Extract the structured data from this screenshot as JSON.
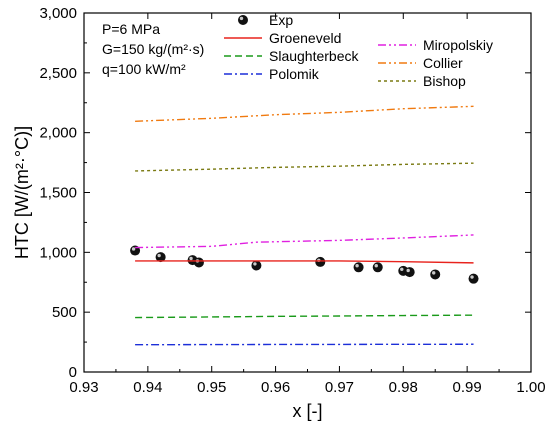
{
  "chart_data": {
    "type": "line",
    "xlabel": "x [-]",
    "ylabel": "HTC [W/(m²·°C)]",
    "xlim": [
      0.93,
      1.0
    ],
    "ylim": [
      0,
      3000
    ],
    "x_ticks": [
      "0.93",
      "0.94",
      "0.95",
      "0.96",
      "0.97",
      "0.98",
      "0.99",
      "1.00"
    ],
    "y_ticks": [
      "0",
      "500",
      "1,000",
      "1,500",
      "2,000",
      "2,500",
      "3,000"
    ],
    "conditions": [
      "P=6 MPa",
      "G=150 kg/(m²·s)",
      "q=100 kW/m²"
    ],
    "legend_position": "top",
    "grid": false,
    "series": [
      {
        "name": "Exp",
        "kind": "scatter",
        "color": "#000000",
        "x": [
          0.938,
          0.942,
          0.947,
          0.948,
          0.957,
          0.967,
          0.973,
          0.976,
          0.98,
          0.981,
          0.985,
          0.991
        ],
        "y": [
          1015,
          960,
          935,
          915,
          890,
          920,
          875,
          875,
          845,
          835,
          815,
          780
        ]
      },
      {
        "name": "Groeneveld",
        "kind": "line",
        "color": "#e8231d",
        "dash": "",
        "x": [
          0.938,
          0.95,
          0.96,
          0.97,
          0.98,
          0.991
        ],
        "y": [
          928,
          928,
          928,
          928,
          922,
          912
        ]
      },
      {
        "name": "Slaughterbeck",
        "kind": "line",
        "color": "#1a9a1a",
        "dash": "7,4",
        "x": [
          0.938,
          0.95,
          0.96,
          0.97,
          0.98,
          0.991
        ],
        "y": [
          455,
          460,
          465,
          468,
          472,
          475
        ]
      },
      {
        "name": "Polomik",
        "kind": "line",
        "color": "#1c2fd8",
        "dash": "8,3,2,3",
        "x": [
          0.938,
          0.96,
          0.991
        ],
        "y": [
          228,
          230,
          232
        ]
      },
      {
        "name": "Miropolskiy",
        "kind": "line",
        "color": "#e020e0",
        "dash": "8,3,2,3,2,3",
        "x": [
          0.938,
          0.95,
          0.957,
          0.97,
          0.98,
          0.991
        ],
        "y": [
          1040,
          1050,
          1085,
          1100,
          1120,
          1145
        ]
      },
      {
        "name": "Collier",
        "kind": "line",
        "color": "#f07a10",
        "dash": "8,3,2,3,2,3",
        "x": [
          0.938,
          0.95,
          0.96,
          0.97,
          0.98,
          0.991
        ],
        "y": [
          2095,
          2120,
          2150,
          2170,
          2200,
          2220
        ]
      },
      {
        "name": "Bishop",
        "kind": "line",
        "color": "#7a7a12",
        "dash": "3,3",
        "x": [
          0.938,
          0.95,
          0.96,
          0.97,
          0.98,
          0.991
        ],
        "y": [
          1680,
          1695,
          1710,
          1720,
          1735,
          1745
        ]
      }
    ]
  }
}
